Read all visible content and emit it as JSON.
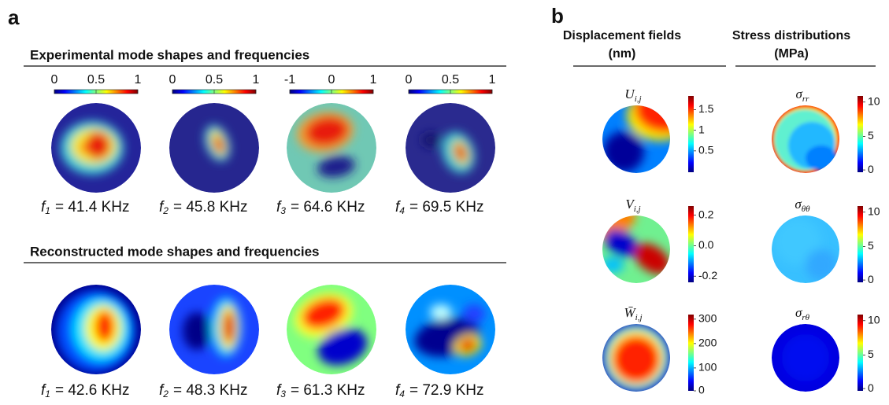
{
  "panel_a": {
    "label": "a",
    "experimental": {
      "title": "Experimental mode shapes and frequencies",
      "modes": [
        {
          "colorbar_ticks": [
            "0",
            "0.5",
            "1"
          ],
          "frequency": {
            "symbol": "f",
            "index": "1",
            "text": "= 41.4 KHz"
          }
        },
        {
          "colorbar_ticks": [
            "0",
            "0.5",
            "1"
          ],
          "frequency": {
            "symbol": "f",
            "index": "2",
            "text": "= 45.8 KHz"
          }
        },
        {
          "colorbar_ticks": [
            "-1",
            "0",
            "1"
          ],
          "frequency": {
            "symbol": "f",
            "index": "3",
            "text": "= 64.6 KHz"
          }
        },
        {
          "colorbar_ticks": [
            "0",
            "0.5",
            "1"
          ],
          "frequency": {
            "symbol": "f",
            "index": "4",
            "text": "= 69.5 KHz"
          }
        }
      ]
    },
    "reconstructed": {
      "title": "Reconstructed mode shapes and frequencies",
      "modes": [
        {
          "frequency": {
            "symbol": "f",
            "index": "1",
            "text": "= 42.6 KHz"
          }
        },
        {
          "frequency": {
            "symbol": "f",
            "index": "2",
            "text": "= 48.3 KHz"
          }
        },
        {
          "frequency": {
            "symbol": "f",
            "index": "3",
            "text": "= 61.3 KHz"
          }
        },
        {
          "frequency": {
            "symbol": "f",
            "index": "4",
            "text": "= 72.9 KHz"
          }
        }
      ]
    }
  },
  "panel_b": {
    "label": "b",
    "columns": [
      {
        "title": "Displacement fields",
        "unit": "(nm)",
        "fields": [
          {
            "symbol": "U",
            "sub": "i,j",
            "colorbar_ticks": [
              "1.5",
              "1",
              "0.5"
            ]
          },
          {
            "symbol": "V",
            "sub": "i,j",
            "colorbar_ticks": [
              "0.2",
              "0.0",
              "-0.2"
            ]
          },
          {
            "symbol": "W̄",
            "sub": "i,j",
            "colorbar_ticks": [
              "300",
              "200",
              "100",
              "0"
            ]
          }
        ]
      },
      {
        "title": "Stress distributions",
        "unit": "(MPa)",
        "fields": [
          {
            "symbol": "σ",
            "sub": "rr",
            "colorbar_ticks": [
              "10",
              "5",
              "0"
            ]
          },
          {
            "symbol": "σ",
            "sub": "θθ",
            "colorbar_ticks": [
              "10",
              "5",
              "0"
            ]
          },
          {
            "symbol": "σ",
            "sub": "rθ",
            "colorbar_ticks": [
              "10",
              "5",
              "0"
            ]
          }
        ]
      }
    ]
  }
}
